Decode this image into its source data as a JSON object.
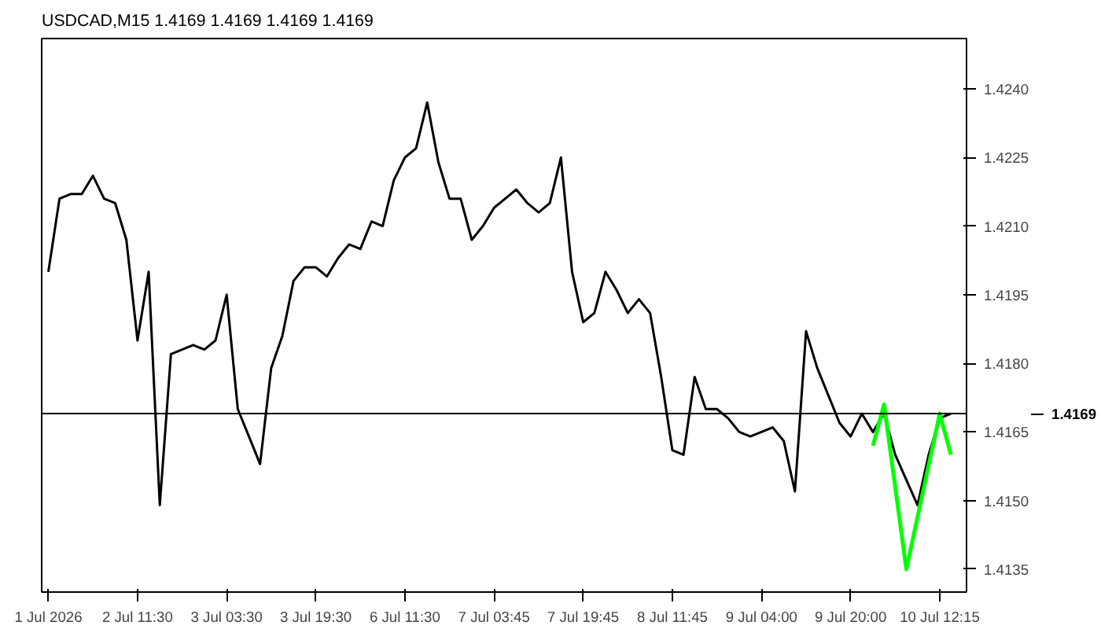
{
  "chart_data": {
    "type": "line",
    "title": "USDCAD,M15  1.4169 1.4169 1.4169 1.4169",
    "categories": [
      "1 Jul 2026",
      null,
      null,
      null,
      null,
      null,
      null,
      null,
      "2 Jul 11:30",
      null,
      null,
      null,
      null,
      null,
      null,
      null,
      "3 Jul 03:30",
      null,
      null,
      null,
      null,
      null,
      null,
      null,
      "3 Jul 19:30",
      null,
      null,
      null,
      null,
      null,
      null,
      null,
      "6 Jul 11:30",
      null,
      null,
      null,
      null,
      null,
      null,
      null,
      "7 Jul 03:45",
      null,
      null,
      null,
      null,
      null,
      null,
      null,
      "7 Jul 19:45",
      null,
      null,
      null,
      null,
      null,
      null,
      null,
      "8 Jul 11:45",
      null,
      null,
      null,
      null,
      null,
      null,
      null,
      "9 Jul 04:00",
      null,
      null,
      null,
      null,
      null,
      null,
      null,
      "9 Jul 20:00",
      null,
      null,
      null,
      null,
      null,
      null,
      null,
      "10 Jul 12:15",
      null,
      null
    ],
    "series": [
      {
        "color": "#000000",
        "values": [
          1.42,
          1.4216,
          1.4217,
          1.4217,
          1.4221,
          1.4216,
          1.4215,
          1.4207,
          1.4185,
          1.42,
          1.4149,
          1.4182,
          1.4183,
          1.4184,
          1.4183,
          1.4185,
          1.4195,
          1.417,
          1.4164,
          1.4158,
          1.4179,
          1.4186,
          1.4198,
          1.4201,
          1.4201,
          1.4199,
          1.4203,
          1.4206,
          1.4205,
          1.4211,
          1.421,
          1.422,
          1.4225,
          1.4227,
          1.4237,
          1.4224,
          1.4216,
          1.4216,
          1.4207,
          1.421,
          1.4214,
          1.4216,
          1.4218,
          1.4215,
          1.4213,
          1.4215,
          1.4225,
          1.42,
          1.4189,
          1.4191,
          1.42,
          1.4196,
          1.4191,
          1.4194,
          1.4191,
          1.4177,
          1.4161,
          1.416,
          1.4177,
          1.417,
          1.417,
          1.4168,
          1.4165,
          1.4164,
          1.4165,
          1.4166,
          1.4163,
          1.4152,
          1.4187,
          1.4179,
          1.4173,
          1.4167,
          1.4164,
          1.4169,
          1.4165,
          1.4169,
          1.416,
          null,
          1.4149,
          1.416,
          1.4168,
          1.4169,
          null
        ]
      },
      {
        "color": "#00ff00",
        "values": [
          null,
          null,
          null,
          null,
          null,
          null,
          null,
          null,
          null,
          null,
          null,
          null,
          null,
          null,
          null,
          null,
          null,
          null,
          null,
          null,
          null,
          null,
          null,
          null,
          null,
          null,
          null,
          null,
          null,
          null,
          null,
          null,
          null,
          null,
          null,
          null,
          null,
          null,
          null,
          null,
          null,
          null,
          null,
          null,
          null,
          null,
          null,
          null,
          null,
          null,
          null,
          null,
          null,
          null,
          null,
          null,
          null,
          null,
          null,
          null,
          null,
          null,
          null,
          null,
          null,
          null,
          null,
          null,
          null,
          null,
          null,
          null,
          null,
          null,
          1.4162,
          1.4171,
          null,
          1.4135,
          null,
          null,
          1.4169,
          1.416,
          null
        ]
      }
    ],
    "ylim": [
      1.413,
      1.4251
    ],
    "yticks": [
      {
        "value": 1.4135,
        "label": "1.4135"
      },
      {
        "value": 1.415,
        "label": "1.4150"
      },
      {
        "value": 1.4165,
        "label": "1.4165"
      },
      {
        "value": 1.418,
        "label": "1.4180"
      },
      {
        "value": 1.4195,
        "label": "1.4195"
      },
      {
        "value": 1.421,
        "label": "1.4210"
      },
      {
        "value": 1.4225,
        "label": "1.4225"
      },
      {
        "value": 1.424,
        "label": "1.4240"
      }
    ],
    "ref_lines": [
      {
        "axis": "y",
        "value": 1.4169,
        "label": "1.4169",
        "color": "#000000"
      }
    ],
    "marker": "none",
    "line_style": "solid"
  }
}
